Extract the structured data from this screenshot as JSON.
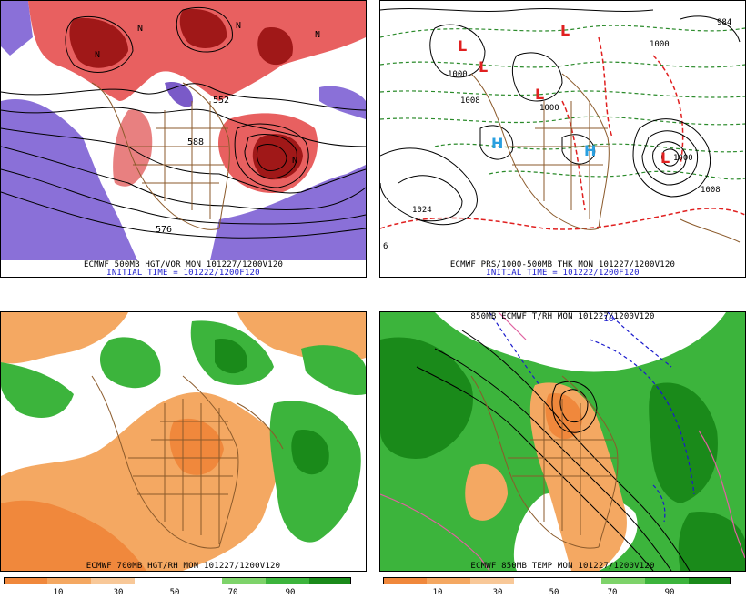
{
  "panels": {
    "tl": {
      "caption1": "ECMWF 500MB HGT/VOR MON 101227/1200V120",
      "caption2": "INITIAL TIME = 101222/1200F120",
      "labels": [
        "576",
        "552",
        "588",
        "N",
        "N",
        "N",
        "N",
        "N"
      ]
    },
    "tr": {
      "caption1": "ECMWF PRS/1000-500MB THK MON 101227/1200V120",
      "caption2": "INITIAL TIME = 101222/1200F120",
      "labels": [
        "1000",
        "1000",
        "1008",
        "1024",
        "1000",
        "1008",
        "984",
        "1000",
        "6"
      ],
      "pressure_centers": [
        "L",
        "L",
        "L",
        "L",
        "L",
        "H",
        "H"
      ]
    },
    "bl": {
      "caption1": "ECMWF 700MB HGT/RH MON 101227/1200V120"
    },
    "br": {
      "caption1": "850MB ECMWF T/RH MON 101227/1200V120",
      "caption2": "ECMWF 850MB TEMP MON 101227/1200V120",
      "labels": [
        "10"
      ]
    }
  },
  "rh_scale": {
    "ticks": [
      "10",
      "30",
      "50",
      "70",
      "90"
    ],
    "colors": [
      "#f0883c",
      "#f4a862",
      "#f8c898",
      "#ffffff",
      "#ffffff",
      "#7ed36a",
      "#3cb43c",
      "#1a8a1a"
    ]
  },
  "colors": {
    "vorticity_red": "#e03030",
    "vorticity_dark": "#801010",
    "vorticity_purple": "#8a5ad8",
    "coast_brown": "#8b5a2b",
    "thickness_red": "#e02020",
    "thickness_green": "#2a8a2a",
    "rh_green": "#3cb43c",
    "rh_orange": "#f0a060"
  }
}
